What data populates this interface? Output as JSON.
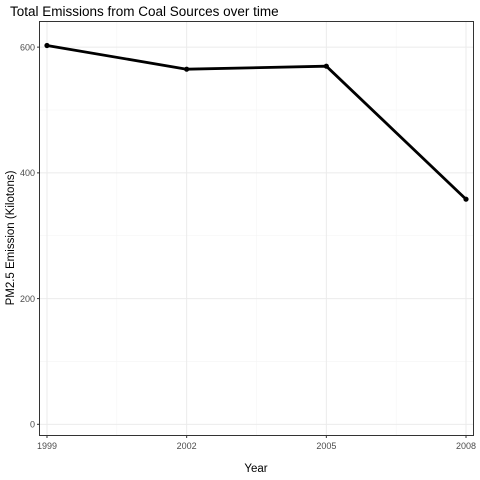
{
  "chart_data": {
    "type": "line",
    "title": "Total Emissions from Coal Sources over time",
    "xlabel": "Year",
    "ylabel": "PM2.5 Emission (Kilotons)",
    "x": [
      1999,
      2002,
      2005,
      2008
    ],
    "xlim": [
      1998.85,
      2008.15
    ],
    "ylim": [
      -17,
      640
    ],
    "x_ticks": [
      1999,
      2002,
      2005,
      2008
    ],
    "x_tick_labels": [
      "1999",
      "2002",
      "2005",
      "2008"
    ],
    "y_ticks": [
      0,
      200,
      400,
      600
    ],
    "y_tick_labels": [
      "0",
      "200",
      "400",
      "600"
    ],
    "grid": true,
    "legend": "none",
    "series": [
      {
        "name": "Total Emissions",
        "values": [
          602.6,
          564.9,
          569.7,
          358.1
        ]
      }
    ]
  }
}
